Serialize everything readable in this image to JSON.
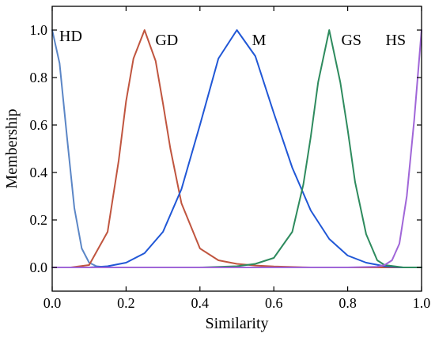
{
  "chart_data": {
    "type": "line",
    "title": "",
    "xlabel": "Similarity",
    "ylabel": "Membership",
    "xlim": [
      0,
      1
    ],
    "ylim": [
      -0.1,
      1.1
    ],
    "xticks": [
      "0.0",
      "0.2",
      "0.4",
      "0.6",
      "0.8",
      "1.0"
    ],
    "yticks": [
      "0.0",
      "0.2",
      "0.4",
      "0.6",
      "0.8",
      "1.0"
    ],
    "grid": false,
    "legend": "none",
    "series": [
      {
        "name": "HD",
        "color": "#5b86c6",
        "x": [
          0.0,
          0.02,
          0.04,
          0.06,
          0.08,
          0.1,
          0.12,
          0.15,
          0.2,
          0.3,
          0.5,
          0.8,
          1.0
        ],
        "y": [
          1.0,
          0.86,
          0.55,
          0.25,
          0.08,
          0.02,
          0.005,
          0.0,
          0.0,
          0.0,
          0.0,
          0.0,
          0.0
        ]
      },
      {
        "name": "GD",
        "color": "#c0553f",
        "x": [
          0.0,
          0.05,
          0.1,
          0.15,
          0.18,
          0.2,
          0.22,
          0.25,
          0.28,
          0.3,
          0.32,
          0.35,
          0.4,
          0.45,
          0.5,
          0.55,
          0.6,
          0.7,
          0.8,
          1.0
        ],
        "y": [
          0.0,
          0.0,
          0.01,
          0.15,
          0.45,
          0.7,
          0.88,
          1.0,
          0.87,
          0.69,
          0.5,
          0.27,
          0.08,
          0.03,
          0.015,
          0.008,
          0.004,
          0.0,
          0.0,
          0.0
        ],
        "label_x": 0.31,
        "label_y": 0.96
      },
      {
        "name": "M",
        "color": "#2057d6",
        "x": [
          0.0,
          0.1,
          0.15,
          0.2,
          0.25,
          0.3,
          0.35,
          0.4,
          0.45,
          0.5,
          0.55,
          0.6,
          0.65,
          0.7,
          0.75,
          0.8,
          0.85,
          0.9,
          0.95,
          1.0
        ],
        "y": [
          0.0,
          0.0,
          0.005,
          0.02,
          0.06,
          0.15,
          0.33,
          0.6,
          0.88,
          1.0,
          0.89,
          0.65,
          0.42,
          0.24,
          0.12,
          0.05,
          0.02,
          0.005,
          0.0,
          0.0
        ],
        "label_x": 0.56,
        "label_y": 0.96
      },
      {
        "name": "GS",
        "color": "#2e8b5e",
        "x": [
          0.0,
          0.4,
          0.5,
          0.55,
          0.6,
          0.65,
          0.68,
          0.7,
          0.72,
          0.75,
          0.78,
          0.8,
          0.82,
          0.85,
          0.88,
          0.9,
          0.95,
          1.0
        ],
        "y": [
          0.0,
          0.0,
          0.005,
          0.015,
          0.04,
          0.15,
          0.35,
          0.55,
          0.78,
          1.0,
          0.78,
          0.58,
          0.36,
          0.14,
          0.03,
          0.01,
          0.0,
          0.0
        ],
        "label_x": 0.81,
        "label_y": 0.96
      },
      {
        "name": "HS",
        "color": "#a066d8",
        "x": [
          0.0,
          0.8,
          0.88,
          0.9,
          0.92,
          0.94,
          0.96,
          0.98,
          1.0
        ],
        "y": [
          0.0,
          0.0,
          0.003,
          0.01,
          0.03,
          0.1,
          0.3,
          0.62,
          1.0
        ],
        "label_x": 0.93,
        "label_y": 0.96
      }
    ]
  }
}
